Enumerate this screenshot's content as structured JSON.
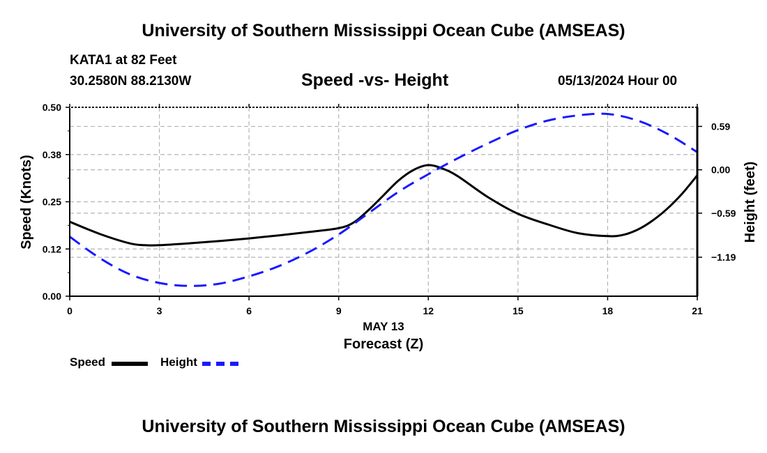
{
  "header": {
    "title": "University of Southern Mississippi Ocean Cube (AMSEAS)",
    "station": "KATA1 at 82 Feet",
    "coords": "30.2580N  88.2130W",
    "chart_title": "Speed -vs- Height",
    "date": "05/13/2024 Hour 00"
  },
  "footer": {
    "title": "University of Southern Mississippi Ocean Cube (AMSEAS)"
  },
  "legend": {
    "speed_label": "Speed",
    "height_label": "Height"
  },
  "colors": {
    "speed": "#000000",
    "height": "#1a1aff",
    "grid": "#b4b4b4"
  },
  "chart_data": {
    "type": "line",
    "title": "Speed -vs- Height",
    "xlabel": "Forecast (Z)",
    "xsublabel": "MAY 13",
    "ylabel_left": "Speed (Knots)",
    "ylabel_right": "Height (feet)",
    "xlim": [
      0,
      21
    ],
    "ylim_left": [
      0,
      0.5
    ],
    "ylim_right": [
      -1.72,
      0.85
    ],
    "x_ticks": [
      0,
      3,
      6,
      9,
      12,
      15,
      18,
      21
    ],
    "x_tick_labels": [
      "0",
      "3",
      "6",
      "9",
      "12",
      "15",
      "18",
      "21"
    ],
    "y_left_ticks": [
      0,
      0.125,
      0.25,
      0.375,
      0.5
    ],
    "y_left_tick_labels": [
      "0.00",
      "0.12",
      "0.25",
      "0.38",
      "0.50"
    ],
    "y_right_ticks": [
      -1.19,
      -0.59,
      0.0,
      0.59
    ],
    "y_right_tick_labels": [
      "−1.19",
      "−0.59",
      "0.00",
      "0.59"
    ],
    "series": [
      {
        "name": "Speed",
        "axis": "left",
        "style": "solid",
        "x": [
          0,
          1,
          2,
          2.5,
          3,
          4,
          5,
          6,
          7,
          8,
          9,
          9.5,
          10,
          10.5,
          11,
          11.5,
          12,
          12.5,
          13,
          14,
          15,
          16,
          17,
          18,
          18.5,
          19,
          19.5,
          20,
          20.5,
          21
        ],
        "values": [
          0.197,
          0.165,
          0.14,
          0.135,
          0.135,
          0.14,
          0.146,
          0.153,
          0.161,
          0.17,
          0.18,
          0.195,
          0.228,
          0.267,
          0.306,
          0.334,
          0.347,
          0.337,
          0.317,
          0.262,
          0.218,
          0.19,
          0.167,
          0.159,
          0.162,
          0.176,
          0.2,
          0.232,
          0.272,
          0.32
        ]
      },
      {
        "name": "Height",
        "axis": "right",
        "style": "dashed",
        "x": [
          0,
          1,
          2,
          3,
          4,
          5,
          6,
          7,
          8,
          9,
          10,
          11,
          12,
          13,
          14,
          15,
          16,
          17,
          18,
          19,
          20,
          21
        ],
        "values": [
          -0.91,
          -1.2,
          -1.42,
          -1.54,
          -1.58,
          -1.55,
          -1.45,
          -1.31,
          -1.12,
          -0.88,
          -0.59,
          -0.3,
          -0.06,
          0.16,
          0.36,
          0.54,
          0.67,
          0.74,
          0.76,
          0.67,
          0.49,
          0.24
        ]
      }
    ]
  }
}
